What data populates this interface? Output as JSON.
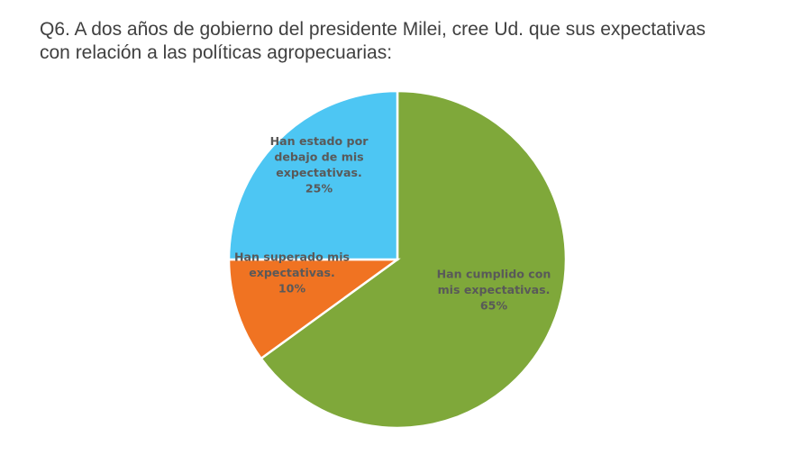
{
  "title": {
    "line1": "Q6.  A dos años de gobierno del presidente Milei, cree Ud. que sus expectativas",
    "line2": "con relación a las políticas agropecuarias:"
  },
  "chart_data": {
    "type": "pie",
    "title": "Q6.  A dos años de gobierno del presidente Milei, cree Ud. que sus expectativas con relación a las políticas agropecuarias:",
    "categories": [
      "Han cumplido con mis expectativas.",
      "Han superado mis expectativas.",
      "Han estado por debajo de mis expectativas."
    ],
    "values": [
      65,
      10,
      25
    ],
    "unit": "%",
    "colors": [
      "#7FA83A",
      "#F07322",
      "#4DC6F3"
    ],
    "start": "12 o'clock, clockwise",
    "data_labels": [
      {
        "lines": [
          "Han cumplido con",
          "mis expectativas.",
          "65%"
        ]
      },
      {
        "lines": [
          "Han superado mis",
          "expectativas.",
          "10%"
        ]
      },
      {
        "lines": [
          "Han estado por",
          "debajo de mis",
          "expectativas.",
          "25%"
        ]
      }
    ]
  }
}
